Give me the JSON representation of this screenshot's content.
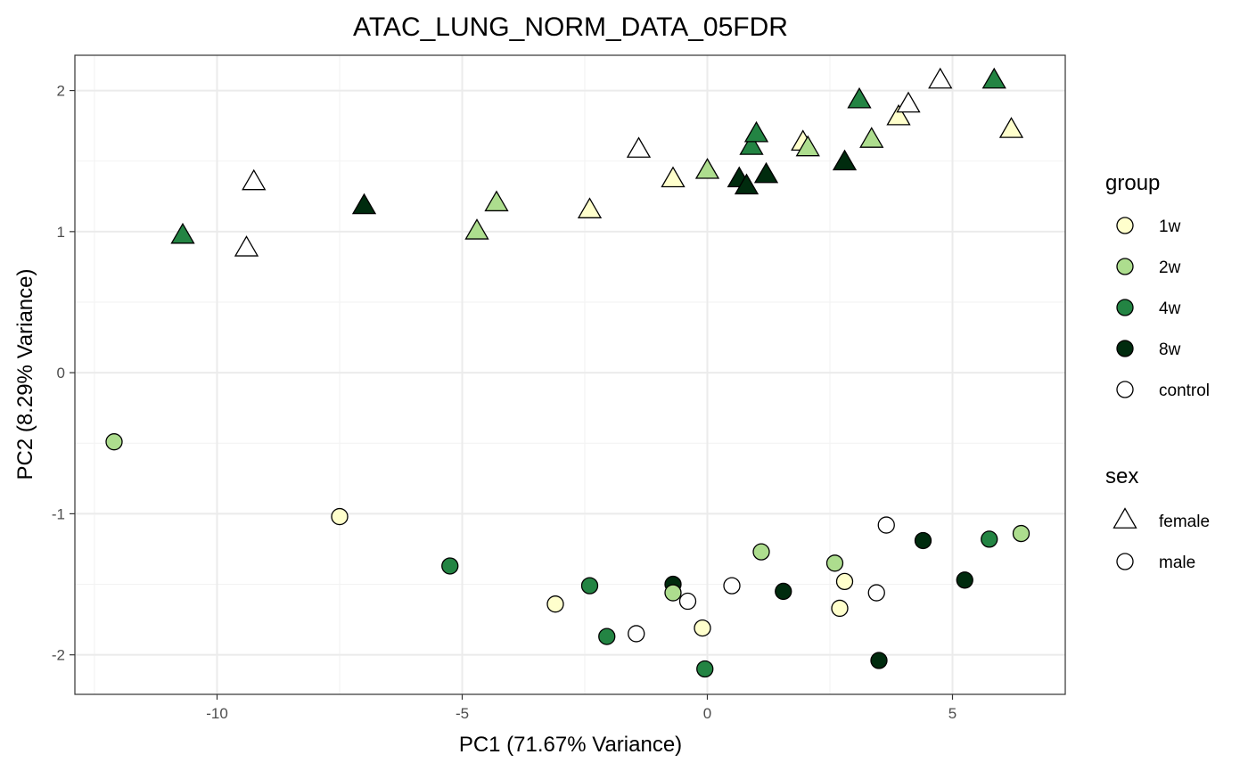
{
  "chart_data": {
    "type": "scatter",
    "title": "ATAC_LUNG_NORM_DATA_05FDR",
    "xlabel": "PC1 (71.67% Variance)",
    "ylabel": "PC2 (8.29% Variance)",
    "xlim": [
      -12.9,
      7.3
    ],
    "ylim": [
      -2.28,
      2.25
    ],
    "x_ticks": [
      -10,
      -5,
      0,
      5
    ],
    "x_tick_labels": [
      "-10",
      "-5",
      "0",
      "5"
    ],
    "y_ticks": [
      2,
      1,
      0,
      -1,
      -2
    ],
    "y_tick_labels": [
      "2",
      "1",
      "0",
      "-1",
      "-2"
    ],
    "x_minor_ticks": [
      -12.5,
      -7.5,
      -2.5,
      2.5
    ],
    "y_minor_ticks": [
      1.5,
      0.5,
      -0.5,
      -1.5
    ],
    "grid": true,
    "legend_position": "right",
    "legend_group_title": "group",
    "legend_sex_title": "sex",
    "groups": [
      {
        "name": "1w",
        "color": "#ffffcc"
      },
      {
        "name": "2w",
        "color": "#addd8e"
      },
      {
        "name": "4w",
        "color": "#238443"
      },
      {
        "name": "8w",
        "color": "#002b0e"
      },
      {
        "name": "control",
        "color": "#ffffff"
      }
    ],
    "sexes": [
      {
        "name": "female",
        "shape": "triangle"
      },
      {
        "name": "male",
        "shape": "circle"
      }
    ],
    "points": [
      {
        "x": -10.7,
        "y": 0.97,
        "group": "4w",
        "sex": "female"
      },
      {
        "x": -9.25,
        "y": 1.35,
        "group": "control",
        "sex": "female"
      },
      {
        "x": -9.4,
        "y": 0.88,
        "group": "control",
        "sex": "female"
      },
      {
        "x": -7.0,
        "y": 1.18,
        "group": "8w",
        "sex": "female"
      },
      {
        "x": -4.7,
        "y": 1.0,
        "group": "2w",
        "sex": "female"
      },
      {
        "x": -4.3,
        "y": 1.2,
        "group": "2w",
        "sex": "female"
      },
      {
        "x": -2.4,
        "y": 1.15,
        "group": "1w",
        "sex": "female"
      },
      {
        "x": -1.4,
        "y": 1.58,
        "group": "control",
        "sex": "female"
      },
      {
        "x": -0.7,
        "y": 1.37,
        "group": "1w",
        "sex": "female"
      },
      {
        "x": 0.0,
        "y": 1.43,
        "group": "2w",
        "sex": "female"
      },
      {
        "x": 0.65,
        "y": 1.37,
        "group": "8w",
        "sex": "female"
      },
      {
        "x": 0.8,
        "y": 1.32,
        "group": "8w",
        "sex": "female"
      },
      {
        "x": 0.9,
        "y": 1.6,
        "group": "4w",
        "sex": "female"
      },
      {
        "x": 1.0,
        "y": 1.69,
        "group": "4w",
        "sex": "female"
      },
      {
        "x": 1.2,
        "y": 1.4,
        "group": "8w",
        "sex": "female"
      },
      {
        "x": 1.95,
        "y": 1.63,
        "group": "1w",
        "sex": "female"
      },
      {
        "x": 2.05,
        "y": 1.59,
        "group": "2w",
        "sex": "female"
      },
      {
        "x": 2.8,
        "y": 1.49,
        "group": "8w",
        "sex": "female"
      },
      {
        "x": 3.1,
        "y": 1.93,
        "group": "4w",
        "sex": "female"
      },
      {
        "x": 3.35,
        "y": 1.65,
        "group": "2w",
        "sex": "female"
      },
      {
        "x": 3.9,
        "y": 1.81,
        "group": "1w",
        "sex": "female"
      },
      {
        "x": 4.1,
        "y": 1.9,
        "group": "control",
        "sex": "female"
      },
      {
        "x": 4.75,
        "y": 2.07,
        "group": "control",
        "sex": "female"
      },
      {
        "x": 5.85,
        "y": 2.07,
        "group": "4w",
        "sex": "female"
      },
      {
        "x": 6.2,
        "y": 1.72,
        "group": "1w",
        "sex": "female"
      },
      {
        "x": -12.1,
        "y": -0.49,
        "group": "2w",
        "sex": "male"
      },
      {
        "x": -7.5,
        "y": -1.02,
        "group": "1w",
        "sex": "male"
      },
      {
        "x": -5.25,
        "y": -1.37,
        "group": "4w",
        "sex": "male"
      },
      {
        "x": -3.1,
        "y": -1.64,
        "group": "1w",
        "sex": "male"
      },
      {
        "x": -2.4,
        "y": -1.51,
        "group": "4w",
        "sex": "male"
      },
      {
        "x": -2.05,
        "y": -1.87,
        "group": "4w",
        "sex": "male"
      },
      {
        "x": -1.45,
        "y": -1.85,
        "group": "control",
        "sex": "male"
      },
      {
        "x": -0.7,
        "y": -1.5,
        "group": "8w",
        "sex": "male"
      },
      {
        "x": -0.7,
        "y": -1.56,
        "group": "2w",
        "sex": "male"
      },
      {
        "x": -0.4,
        "y": -1.62,
        "group": "control",
        "sex": "male"
      },
      {
        "x": -0.1,
        "y": -1.81,
        "group": "1w",
        "sex": "male"
      },
      {
        "x": -0.05,
        "y": -2.1,
        "group": "4w",
        "sex": "male"
      },
      {
        "x": 0.5,
        "y": -1.51,
        "group": "control",
        "sex": "male"
      },
      {
        "x": 1.1,
        "y": -1.27,
        "group": "2w",
        "sex": "male"
      },
      {
        "x": 1.55,
        "y": -1.55,
        "group": "8w",
        "sex": "male"
      },
      {
        "x": 2.6,
        "y": -1.35,
        "group": "2w",
        "sex": "male"
      },
      {
        "x": 2.7,
        "y": -1.67,
        "group": "1w",
        "sex": "male"
      },
      {
        "x": 2.8,
        "y": -1.48,
        "group": "1w",
        "sex": "male"
      },
      {
        "x": 3.45,
        "y": -1.56,
        "group": "control",
        "sex": "male"
      },
      {
        "x": 3.5,
        "y": -2.04,
        "group": "8w",
        "sex": "male"
      },
      {
        "x": 3.65,
        "y": -1.08,
        "group": "control",
        "sex": "male"
      },
      {
        "x": 4.4,
        "y": -1.19,
        "group": "8w",
        "sex": "male"
      },
      {
        "x": 5.25,
        "y": -1.47,
        "group": "8w",
        "sex": "male"
      },
      {
        "x": 5.75,
        "y": -1.18,
        "group": "4w",
        "sex": "male"
      },
      {
        "x": 6.4,
        "y": -1.14,
        "group": "2w",
        "sex": "male"
      }
    ]
  }
}
